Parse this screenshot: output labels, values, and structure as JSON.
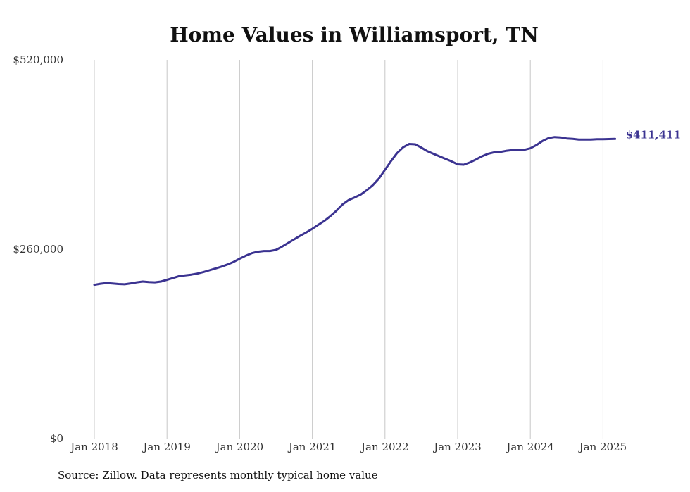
{
  "chart_data": {
    "type": "line",
    "title": "Home Values in Williamsport, TN",
    "xlabel": "",
    "ylabel": "",
    "ylim": [
      0,
      520000
    ],
    "y_ticks": [
      0,
      260000,
      520000
    ],
    "y_tick_labels": [
      "$0",
      "$260,000",
      "$520,000"
    ],
    "x_ticks": [
      "2018-01",
      "2019-01",
      "2020-01",
      "2021-01",
      "2022-01",
      "2023-01",
      "2024-01",
      "2025-01"
    ],
    "x_tick_labels": [
      "Jan 2018",
      "Jan 2019",
      "Jan 2020",
      "Jan 2021",
      "Jan 2022",
      "Jan 2023",
      "Jan 2024",
      "Jan 2025"
    ],
    "grid": "vertical",
    "line_color": "#3b3391",
    "end_label": "$411,411",
    "series": [
      {
        "x": [
          "2018-01",
          "2018-02",
          "2018-03",
          "2018-04",
          "2018-05",
          "2018-06",
          "2018-07",
          "2018-08",
          "2018-09",
          "2018-10",
          "2018-11",
          "2018-12",
          "2019-01",
          "2019-02",
          "2019-03",
          "2019-04",
          "2019-05",
          "2019-06",
          "2019-07",
          "2019-08",
          "2019-09",
          "2019-10",
          "2019-11",
          "2019-12",
          "2020-01",
          "2020-02",
          "2020-03",
          "2020-04",
          "2020-05",
          "2020-06",
          "2020-07",
          "2020-08",
          "2020-09",
          "2020-10",
          "2020-11",
          "2020-12",
          "2021-01",
          "2021-02",
          "2021-03",
          "2021-04",
          "2021-05",
          "2021-06",
          "2021-07",
          "2021-08",
          "2021-09",
          "2021-10",
          "2021-11",
          "2021-12",
          "2022-01",
          "2022-02",
          "2022-03",
          "2022-04",
          "2022-05",
          "2022-06",
          "2022-07",
          "2022-08",
          "2022-09",
          "2022-10",
          "2022-11",
          "2022-12",
          "2023-01",
          "2023-02",
          "2023-03",
          "2023-04",
          "2023-05",
          "2023-06",
          "2023-07",
          "2023-08",
          "2023-09",
          "2023-10",
          "2023-11",
          "2023-12",
          "2024-01",
          "2024-02",
          "2024-03",
          "2024-04",
          "2024-05",
          "2024-06",
          "2024-07",
          "2024-08",
          "2024-09",
          "2024-10",
          "2024-11",
          "2024-12",
          "2025-01",
          "2025-02",
          "2025-03"
        ],
        "values": [
          211000,
          212500,
          213500,
          212800,
          212200,
          211800,
          213000,
          214500,
          215500,
          214800,
          214500,
          215500,
          218000,
          220500,
          223000,
          224000,
          225000,
          226500,
          228500,
          231000,
          233500,
          236000,
          239000,
          242500,
          247000,
          251000,
          254500,
          256500,
          257500,
          257500,
          259000,
          263500,
          268500,
          273500,
          278500,
          283000,
          288000,
          293500,
          299000,
          305500,
          313000,
          321500,
          327500,
          331000,
          335000,
          341000,
          348000,
          357000,
          369000,
          381000,
          392000,
          400000,
          404500,
          404000,
          399500,
          394500,
          391000,
          387500,
          384000,
          380500,
          376500,
          376000,
          379000,
          383000,
          387500,
          391000,
          393000,
          393500,
          395000,
          396000,
          396000,
          396500,
          398500,
          403000,
          408500,
          412500,
          414000,
          413500,
          412000,
          411500,
          410500,
          410500,
          410500,
          411000,
          411000,
          411300,
          411411
        ]
      }
    ]
  },
  "source_note": "Source: Zillow. Data represents monthly typical home value"
}
